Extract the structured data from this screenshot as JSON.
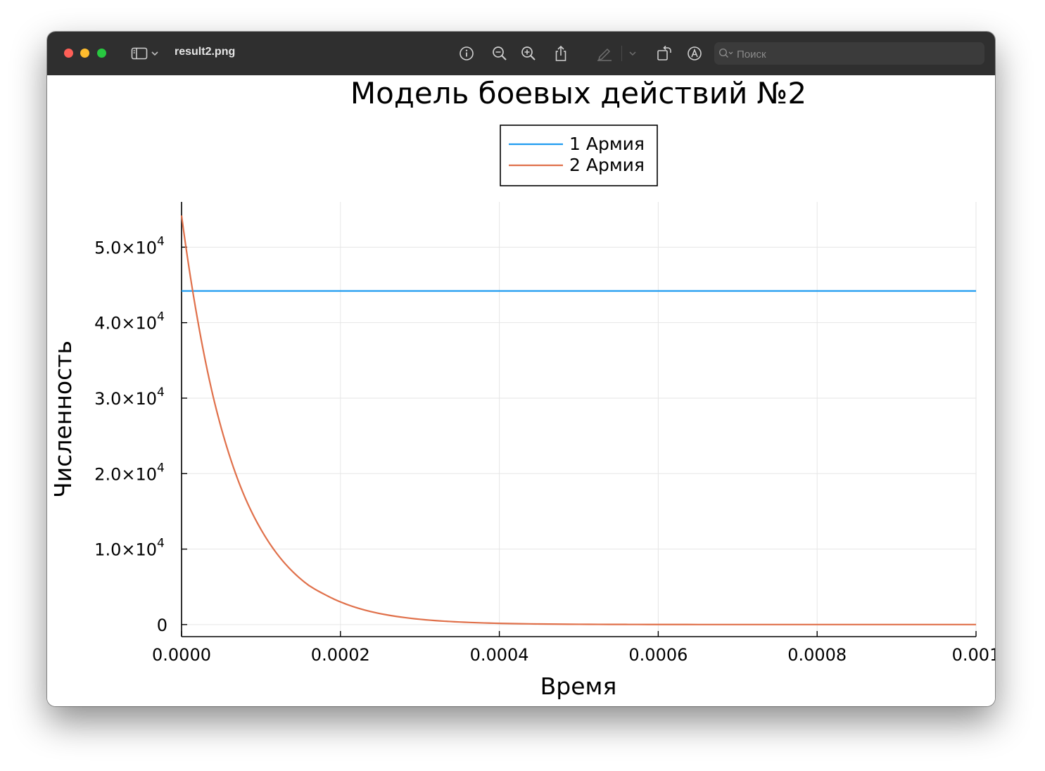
{
  "window": {
    "title": "result2.png",
    "search": {
      "placeholder": "Поиск"
    }
  },
  "toolbar": {
    "icons": [
      "sidebar-icon",
      "chevron-down-icon",
      "info-icon",
      "zoom-out-icon",
      "zoom-in-icon",
      "share-icon",
      "markup-pen-icon",
      "chevron-down-icon",
      "rotate-icon",
      "markup-circle-icon",
      "search-icon"
    ]
  },
  "colors": {
    "series1": "#1f9cf0",
    "series2": "#e0704a",
    "grid": "#e6e6e6",
    "titlebar": "#2f2f2f"
  },
  "chart_data": {
    "type": "line",
    "title": "Модель боевых действий №2",
    "xlabel": "Время",
    "ylabel": "Численность",
    "xlim": [
      0,
      0.001
    ],
    "ylim": [
      -1600,
      56000
    ],
    "x_ticks": [
      {
        "value": 0,
        "label": "0.0000"
      },
      {
        "value": 0.0002,
        "label": "0.0002"
      },
      {
        "value": 0.0004,
        "label": "0.0004"
      },
      {
        "value": 0.0006,
        "label": "0.0006"
      },
      {
        "value": 0.0008,
        "label": "0.0008"
      },
      {
        "value": 0.001,
        "label": "0.001"
      }
    ],
    "y_ticks": [
      {
        "value": 0,
        "mant": "0",
        "exp": ""
      },
      {
        "value": 10000,
        "mant": "1.0×10",
        "exp": "4"
      },
      {
        "value": 20000,
        "mant": "2.0×10",
        "exp": "4"
      },
      {
        "value": 30000,
        "mant": "3.0×10",
        "exp": "4"
      },
      {
        "value": 40000,
        "mant": "4.0×10",
        "exp": "4"
      },
      {
        "value": 50000,
        "mant": "5.0×10",
        "exp": "4"
      }
    ],
    "grid": true,
    "legend_position": "top-center",
    "series": [
      {
        "name": "1 Армия",
        "color": "#1f9cf0",
        "x": [
          0,
          0.0002,
          0.0004,
          0.0006,
          0.0008,
          0.001
        ],
        "y": [
          44200,
          44200,
          44200,
          44200,
          44200,
          44200
        ]
      },
      {
        "name": "2 Армия",
        "color": "#e0704a",
        "x": [
          0,
          2e-05,
          4e-05,
          6e-05,
          8e-05,
          0.0001,
          0.00012,
          0.00014,
          0.00016,
          0.00018,
          0.0002,
          0.00025,
          0.0003,
          0.00035,
          0.0004,
          0.0005,
          0.0006,
          0.0007,
          0.0008,
          0.0009,
          0.001
        ],
        "y": [
          54200,
          40500,
          30100,
          22500,
          16800,
          12600,
          9400,
          7000,
          5200,
          4000,
          3000,
          1450,
          700,
          340,
          160,
          38,
          9,
          2,
          0,
          0,
          0
        ]
      }
    ]
  }
}
